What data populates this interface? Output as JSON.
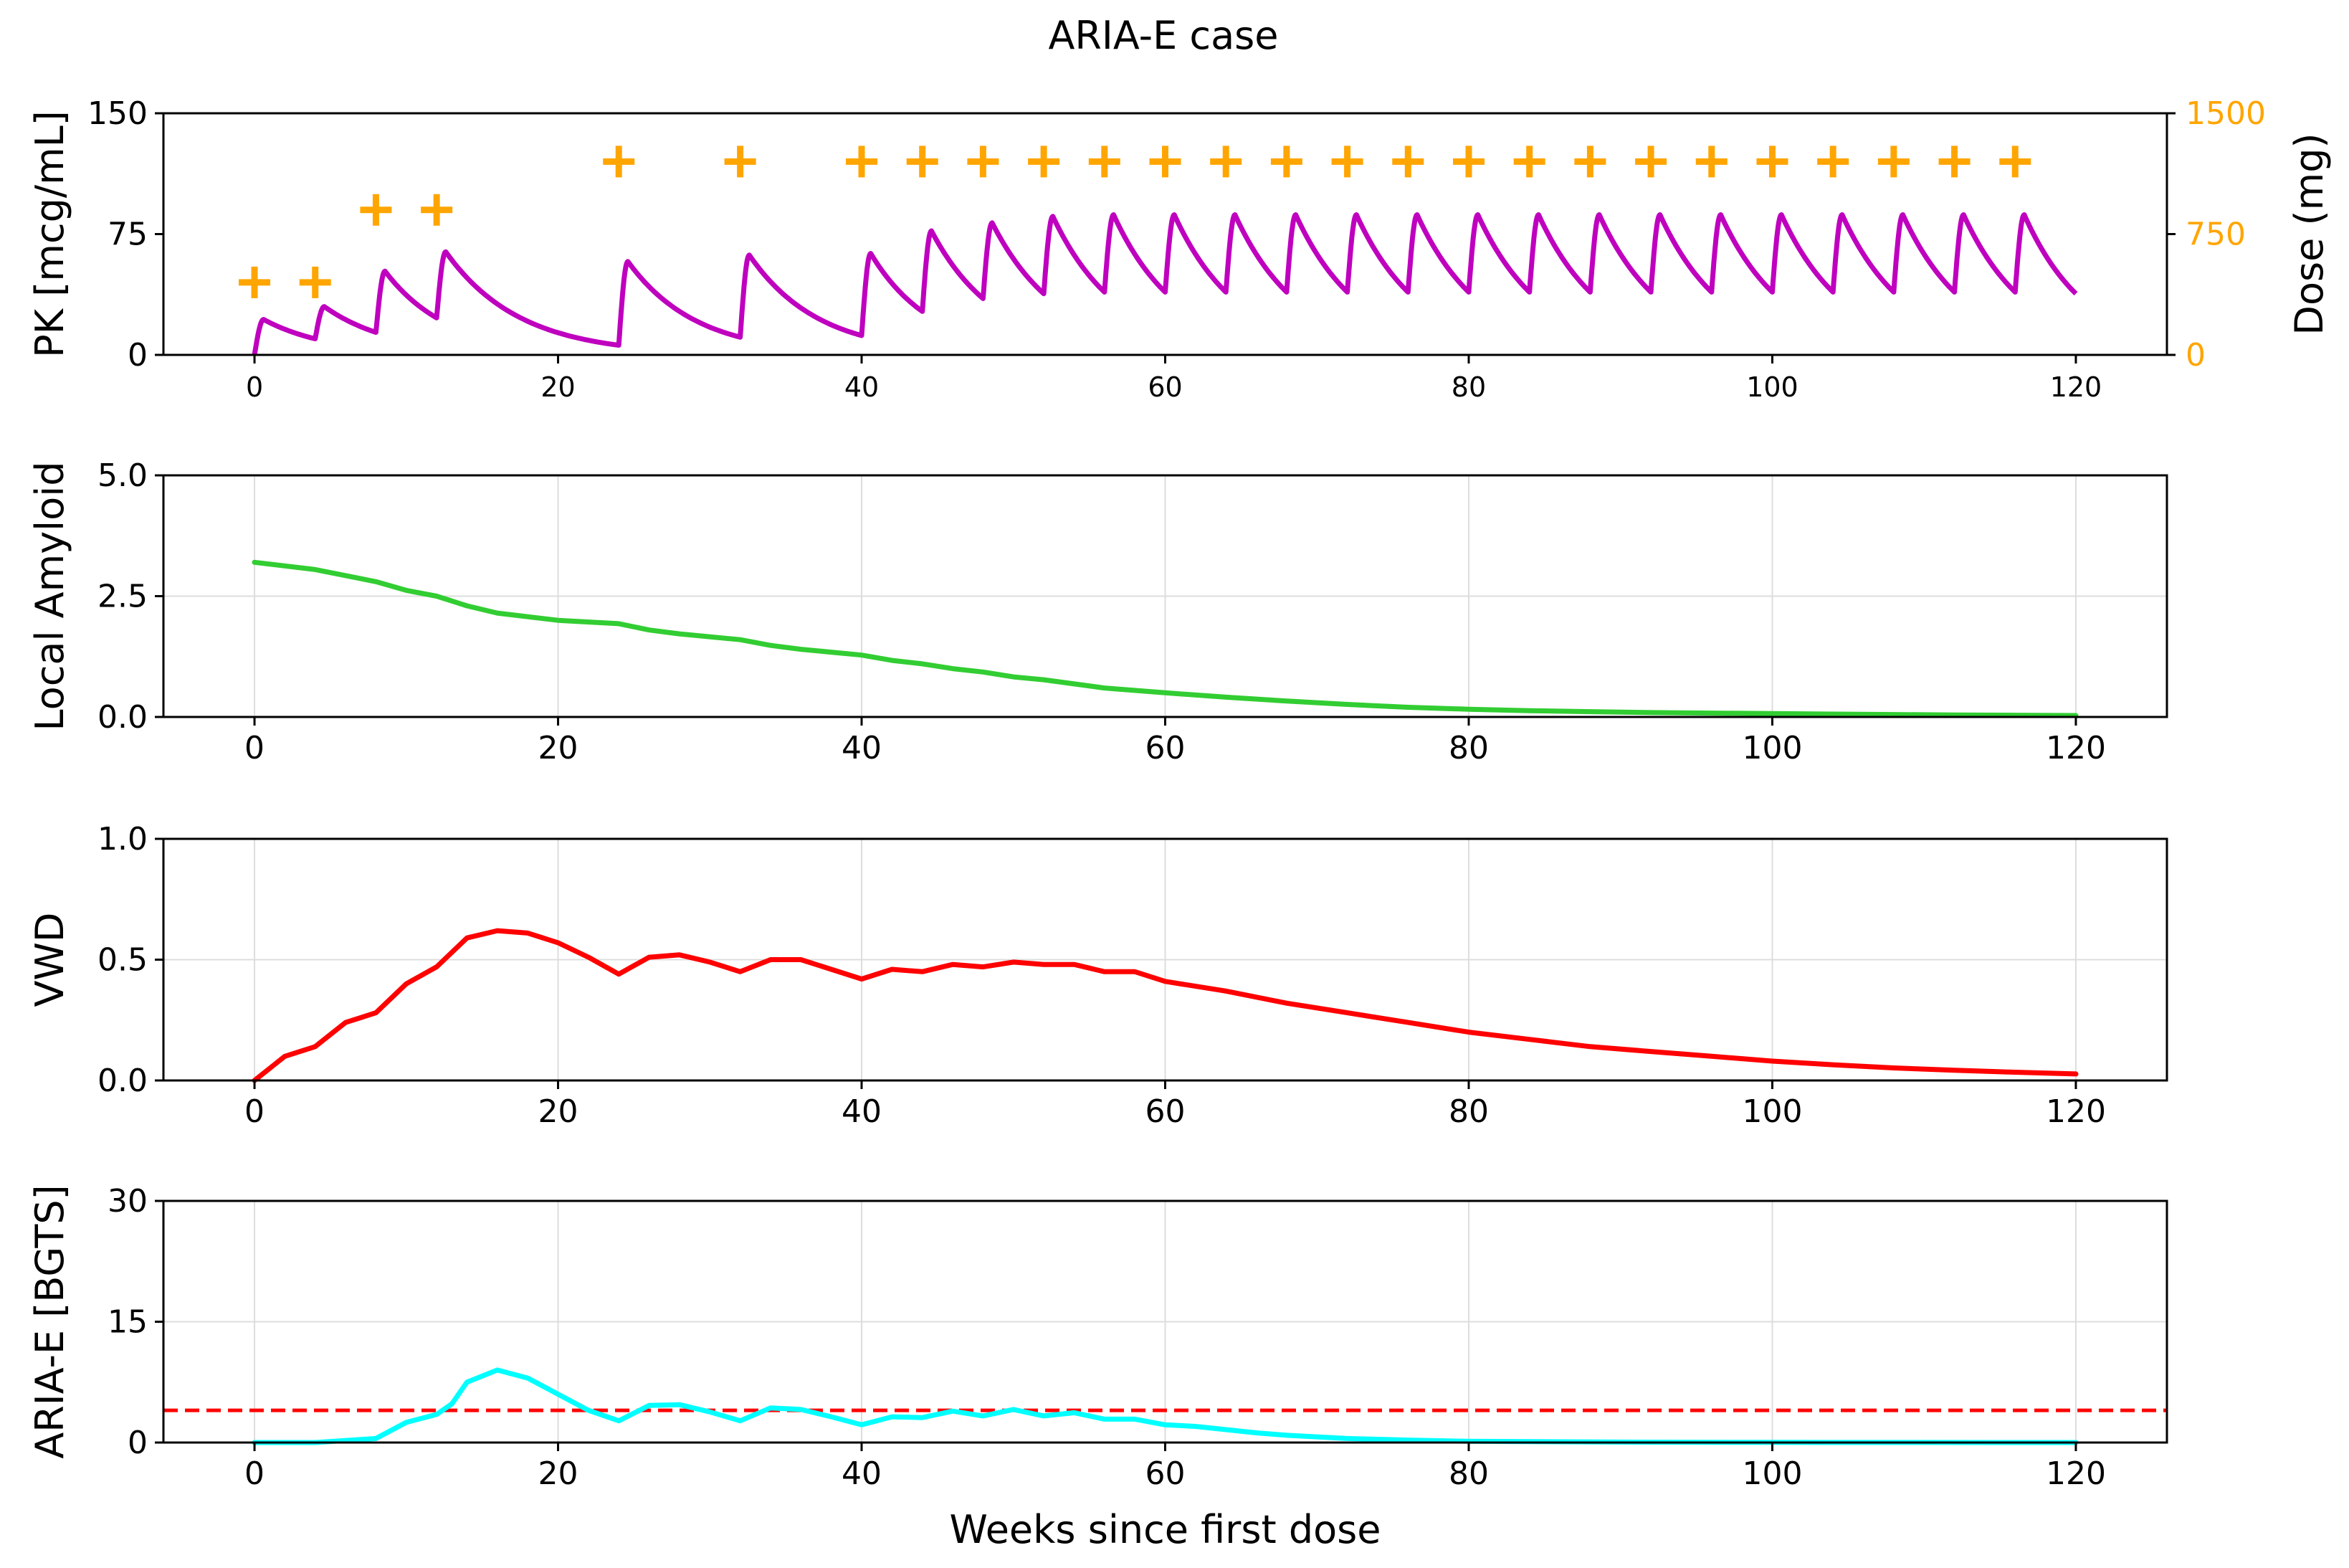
{
  "figure": {
    "title": "ARIA-E case"
  },
  "chart_data": [
    {
      "type": "line",
      "panel": "pk",
      "ylabel": "PK [mcg/mL]",
      "y2label": "Dose (mg)",
      "xlim": [
        -6,
        126
      ],
      "ylim": [
        0,
        150
      ],
      "y2lim": [
        0,
        1500
      ],
      "xticks": [
        "0",
        "20",
        "40",
        "60",
        "80",
        "100",
        "120"
      ],
      "yticks": [
        "0",
        "75",
        "150"
      ],
      "y2ticks": [
        "0",
        "750",
        "1500"
      ],
      "grid": false,
      "colors": {
        "pk": "#bf00bf",
        "dose": "#ffa500"
      },
      "series": [
        {
          "role": "pk",
          "dose_weeks": [
            0,
            4,
            8,
            12,
            24,
            32,
            40,
            44,
            48,
            52,
            56,
            60,
            64,
            68,
            72,
            76,
            80,
            84,
            88,
            92,
            96,
            100,
            104,
            108,
            112,
            116
          ],
          "peak_values": [
            22,
            30,
            52,
            64,
            58,
            62,
            63,
            77,
            82,
            86,
            87,
            87,
            87,
            87,
            87,
            87,
            87,
            87,
            87,
            87,
            87,
            87,
            87,
            87,
            87,
            87
          ],
          "trough_values": [
            0,
            10,
            14,
            23,
            6,
            11,
            12,
            27,
            35,
            38,
            39,
            39,
            39,
            39,
            39,
            39,
            39,
            39,
            39,
            39,
            39,
            39,
            39,
            39,
            39,
            39
          ],
          "end": {
            "x": 120,
            "y": 38
          }
        },
        {
          "role": "dose",
          "marker": "+",
          "x": [
            0,
            4,
            8,
            12,
            24,
            32,
            40,
            44,
            48,
            52,
            56,
            60,
            64,
            68,
            72,
            76,
            80,
            84,
            88,
            92,
            96,
            100,
            104,
            108,
            112,
            116
          ],
          "y": [
            450,
            450,
            900,
            900,
            1200,
            1200,
            1200,
            1200,
            1200,
            1200,
            1200,
            1200,
            1200,
            1200,
            1200,
            1200,
            1200,
            1200,
            1200,
            1200,
            1200,
            1200,
            1200,
            1200,
            1200,
            1200
          ]
        }
      ]
    },
    {
      "type": "line",
      "panel": "amyloid",
      "ylabel": "Local Amyloid",
      "xlim": [
        -6,
        126
      ],
      "ylim": [
        0,
        5
      ],
      "xticks": [
        "0",
        "20",
        "40",
        "60",
        "80",
        "100",
        "120"
      ],
      "yticks": [
        "0.0",
        "2.5",
        "5.0"
      ],
      "grid": true,
      "colors": {
        "line": "#32cd32"
      },
      "series": [
        {
          "x": [
            0,
            4,
            8,
            10,
            12,
            14,
            16,
            20,
            24,
            26,
            28,
            32,
            34,
            36,
            40,
            42,
            44,
            46,
            48,
            50,
            52,
            56,
            60,
            64,
            68,
            72,
            76,
            80,
            84,
            88,
            92,
            96,
            100,
            104,
            108,
            112,
            116,
            120
          ],
          "y": [
            3.2,
            3.05,
            2.8,
            2.62,
            2.5,
            2.3,
            2.15,
            2.0,
            1.93,
            1.8,
            1.72,
            1.6,
            1.48,
            1.4,
            1.28,
            1.17,
            1.1,
            1.0,
            0.93,
            0.83,
            0.77,
            0.6,
            0.5,
            0.41,
            0.33,
            0.26,
            0.2,
            0.16,
            0.13,
            0.11,
            0.09,
            0.08,
            0.07,
            0.06,
            0.05,
            0.04,
            0.035,
            0.03
          ]
        }
      ]
    },
    {
      "type": "line",
      "panel": "vwd",
      "ylabel": "VWD",
      "xlim": [
        -6,
        126
      ],
      "ylim": [
        0,
        1
      ],
      "xticks": [
        "0",
        "20",
        "40",
        "60",
        "80",
        "100",
        "120"
      ],
      "yticks": [
        "0.0",
        "0.5",
        "1.0"
      ],
      "grid": true,
      "colors": {
        "line": "#ff0000"
      },
      "series": [
        {
          "x": [
            0,
            2,
            4,
            6,
            8,
            10,
            12,
            14,
            16,
            18,
            20,
            22,
            24,
            26,
            28,
            30,
            32,
            34,
            36,
            38,
            40,
            42,
            44,
            46,
            48,
            50,
            52,
            54,
            56,
            58,
            60,
            64,
            68,
            72,
            76,
            80,
            84,
            88,
            92,
            96,
            100,
            104,
            108,
            112,
            116,
            120
          ],
          "y": [
            0,
            0.1,
            0.14,
            0.24,
            0.28,
            0.4,
            0.47,
            0.59,
            0.62,
            0.61,
            0.57,
            0.51,
            0.44,
            0.51,
            0.52,
            0.49,
            0.45,
            0.5,
            0.5,
            0.46,
            0.42,
            0.46,
            0.45,
            0.48,
            0.47,
            0.49,
            0.48,
            0.48,
            0.45,
            0.45,
            0.41,
            0.37,
            0.32,
            0.28,
            0.24,
            0.2,
            0.17,
            0.14,
            0.12,
            0.1,
            0.08,
            0.065,
            0.052,
            0.042,
            0.034,
            0.027
          ]
        }
      ]
    },
    {
      "type": "line",
      "panel": "aria",
      "ylabel": "ARIA-E [BGTS]",
      "xlabel": "Weeks since first dose",
      "xlim": [
        -6,
        126
      ],
      "ylim": [
        0,
        30
      ],
      "xticks": [
        "0",
        "20",
        "40",
        "60",
        "80",
        "100",
        "120"
      ],
      "yticks": [
        "0",
        "15",
        "30"
      ],
      "grid": true,
      "colors": {
        "line": "#00ffff",
        "threshold": "#ff0000"
      },
      "threshold": 4,
      "series": [
        {
          "x": [
            0,
            4,
            8,
            10,
            12,
            13,
            14,
            16,
            18,
            20,
            22,
            24,
            26,
            28,
            30,
            32,
            34,
            36,
            38,
            40,
            42,
            44,
            46,
            48,
            50,
            52,
            54,
            56,
            58,
            60,
            62,
            64,
            66,
            68,
            72,
            76,
            80,
            90,
            100,
            110,
            120
          ],
          "y": [
            0,
            0,
            0.5,
            2.5,
            3.5,
            4.8,
            7.5,
            9,
            8,
            6,
            4,
            2.7,
            4.6,
            4.7,
            3.8,
            2.7,
            4.3,
            4.1,
            3.2,
            2.2,
            3.2,
            3.1,
            3.9,
            3.3,
            4.1,
            3.3,
            3.7,
            2.9,
            2.9,
            2.2,
            2,
            1.6,
            1.2,
            0.9,
            0.5,
            0.3,
            0.15,
            0.05,
            0.02,
            0.01,
            0
          ]
        }
      ]
    }
  ]
}
